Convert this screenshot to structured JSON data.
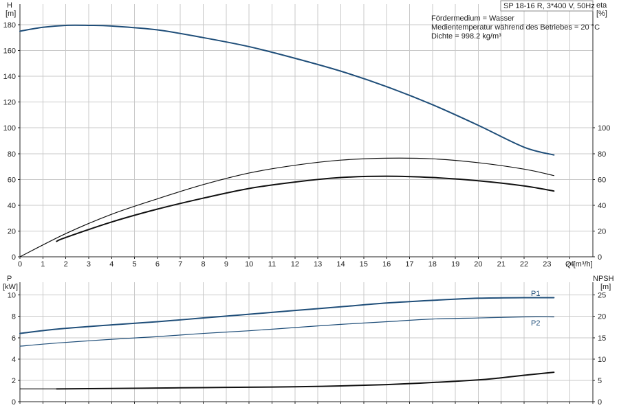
{
  "header": {
    "model": "SP 18-16 R, 3*400 V, 50Hz",
    "info_lines": [
      "Fördermedium = Wasser",
      "Medientemperatur während des Betriebes = 20 °C",
      "Dichte = 998.2 kg/m³"
    ]
  },
  "chart_data": [
    {
      "type": "line",
      "panel": "top",
      "xlabel": "Q [m³/h]",
      "xlim": [
        0,
        25
      ],
      "x_ticks": [
        0,
        1,
        2,
        3,
        4,
        5,
        6,
        7,
        8,
        9,
        10,
        11,
        12,
        13,
        14,
        15,
        16,
        17,
        18,
        19,
        20,
        21,
        22,
        23,
        24
      ],
      "left_axis": {
        "label": "H",
        "unit": "[m]",
        "ylim": [
          0,
          196
        ],
        "ticks": [
          0,
          20,
          40,
          60,
          80,
          100,
          120,
          140,
          160,
          180
        ]
      },
      "right_axis": {
        "label": "eta",
        "unit": "[%]",
        "ylim": [
          0,
          196
        ],
        "ticks": [
          0,
          20,
          40,
          60,
          80,
          100
        ]
      },
      "grid": true,
      "series": [
        {
          "name": "",
          "axis": "left",
          "color": "#1f4e79",
          "width": 2,
          "x": [
            0,
            1,
            2,
            3,
            4,
            6,
            8,
            10,
            12,
            14,
            16,
            18,
            20,
            22,
            23.3
          ],
          "y": [
            175,
            178,
            179.5,
            179.5,
            179,
            176,
            170,
            163,
            154,
            144,
            132,
            118,
            102,
            85,
            79
          ]
        },
        {
          "name": "",
          "axis": "right",
          "color": "#111111",
          "width": 1.2,
          "x": [
            0,
            2,
            4,
            6,
            8,
            10,
            12,
            14,
            16,
            18,
            20,
            22,
            23.3
          ],
          "y": [
            0,
            18,
            33,
            45,
            56,
            65,
            71,
            75,
            76.5,
            76,
            73,
            68,
            63
          ]
        },
        {
          "name": "",
          "axis": "right",
          "color": "#111111",
          "width": 2,
          "x": [
            1.6,
            2,
            4,
            6,
            8,
            10,
            12,
            14,
            16,
            18,
            20,
            22,
            23.3
          ],
          "y": [
            12,
            15,
            27,
            37,
            45.5,
            53,
            58,
            61.5,
            62.5,
            61.5,
            59,
            55,
            51
          ]
        }
      ]
    },
    {
      "type": "line",
      "panel": "bottom",
      "xlim": [
        0,
        25
      ],
      "left_axis": {
        "label": "P",
        "unit": "[kW]",
        "ylim": [
          0,
          11.2
        ],
        "ticks": [
          0,
          2,
          4,
          6,
          8,
          10
        ]
      },
      "right_axis": {
        "label": "NPSH",
        "unit": "[m]",
        "ylim": [
          0,
          28
        ],
        "ticks": [
          0,
          5,
          10,
          15,
          20,
          25
        ]
      },
      "grid": true,
      "series": [
        {
          "name": "P1",
          "axis": "left",
          "color": "#1f4e79",
          "width": 2,
          "x": [
            0,
            1.6,
            4,
            6,
            8,
            10,
            12,
            14,
            16,
            18,
            20,
            22,
            23.3
          ],
          "y": [
            6.4,
            6.8,
            7.2,
            7.5,
            7.85,
            8.2,
            8.55,
            8.9,
            9.25,
            9.5,
            9.7,
            9.75,
            9.75
          ]
        },
        {
          "name": "P2",
          "axis": "left",
          "color": "#1f4e79",
          "width": 1.2,
          "x": [
            0,
            1.6,
            4,
            6,
            8,
            10,
            12,
            14,
            16,
            18,
            20,
            22,
            23.3
          ],
          "y": [
            5.2,
            5.5,
            5.85,
            6.1,
            6.4,
            6.65,
            6.95,
            7.25,
            7.5,
            7.75,
            7.85,
            7.95,
            7.95
          ]
        },
        {
          "name": "",
          "axis": "right",
          "color": "#111111",
          "width": 1.2,
          "x": [
            0,
            1.6
          ],
          "y": [
            3.0,
            3.0
          ]
        },
        {
          "name": "",
          "axis": "right",
          "color": "#111111",
          "width": 2,
          "x": [
            1.6,
            4,
            6,
            8,
            10,
            12,
            14,
            16,
            18,
            20,
            21,
            22,
            23.3
          ],
          "y": [
            3.0,
            3.1,
            3.2,
            3.3,
            3.4,
            3.5,
            3.7,
            4.0,
            4.5,
            5.1,
            5.6,
            6.2,
            6.9
          ]
        }
      ]
    }
  ]
}
